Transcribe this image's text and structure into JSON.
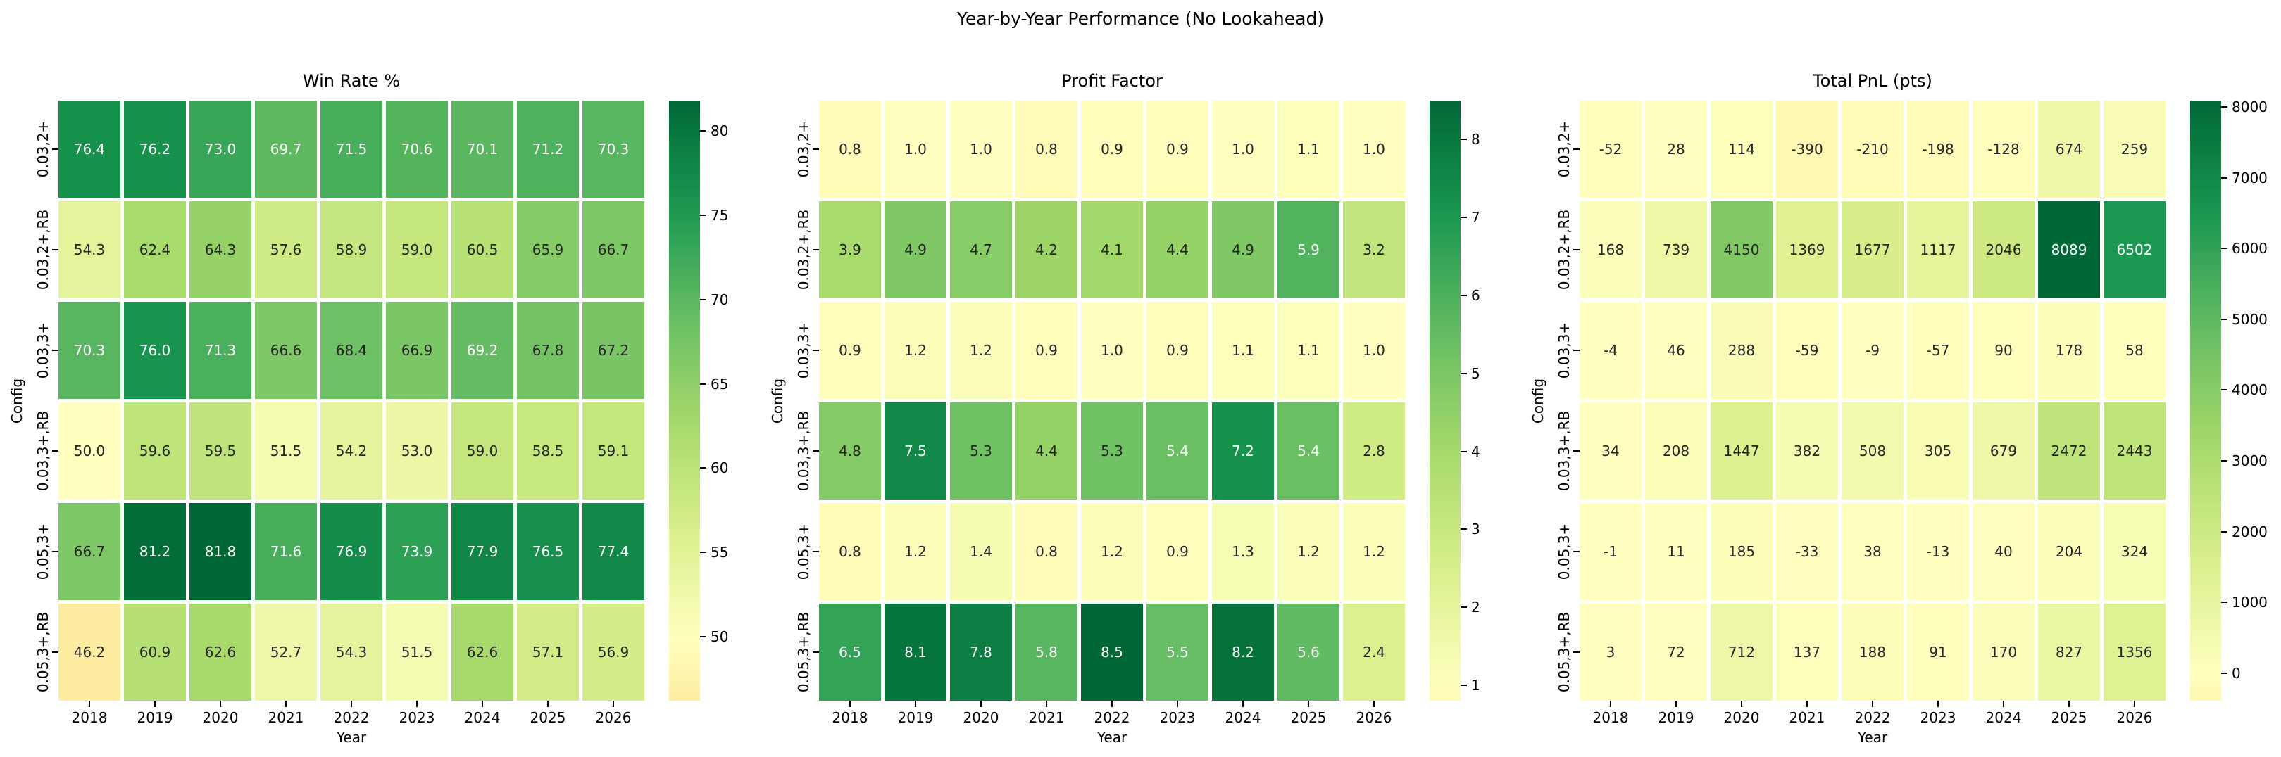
{
  "figure": {
    "suptitle": "Year-by-Year Performance (No Lookahead)",
    "background": "#ffffff"
  },
  "colormap": {
    "name": "RdYlGn",
    "stops": [
      "#a50026",
      "#d73027",
      "#f46d43",
      "#fdae61",
      "#fee08b",
      "#ffffbf",
      "#d9ef8b",
      "#a6d96a",
      "#66bd63",
      "#1a9850",
      "#006837"
    ]
  },
  "annotation_text": {
    "dark": "#262626",
    "light": "#ffffff",
    "luminance_threshold": 0.413
  },
  "chart_data": [
    {
      "type": "heatmap",
      "title": "Win Rate %",
      "xlabel": "Year",
      "ylabel": "Config",
      "x": [
        "2018",
        "2019",
        "2020",
        "2021",
        "2022",
        "2023",
        "2024",
        "2025",
        "2026"
      ],
      "y": [
        "0.03,2+",
        "0.03,2+,RB",
        "0.03,3+",
        "0.03,3+,RB",
        "0.05,3+",
        "0.05,3+,RB"
      ],
      "center": 50,
      "value_decimals": 1,
      "values": [
        [
          76.4,
          76.2,
          73.0,
          69.7,
          71.5,
          70.6,
          70.1,
          71.2,
          70.3
        ],
        [
          54.3,
          62.4,
          64.3,
          57.6,
          58.9,
          59.0,
          60.5,
          65.9,
          66.7
        ],
        [
          70.3,
          76.0,
          71.3,
          66.6,
          68.4,
          66.9,
          69.2,
          67.8,
          67.2
        ],
        [
          50.0,
          59.6,
          59.5,
          51.5,
          54.2,
          53.0,
          59.0,
          58.5,
          59.1
        ],
        [
          66.7,
          81.2,
          81.8,
          71.6,
          76.9,
          73.9,
          77.9,
          76.5,
          77.4
        ],
        [
          46.2,
          60.9,
          62.6,
          52.7,
          54.3,
          51.5,
          62.6,
          57.1,
          56.9
        ]
      ],
      "colorbar_ticks": [
        50,
        55,
        60,
        65,
        70,
        75,
        80
      ]
    },
    {
      "type": "heatmap",
      "title": "Profit Factor",
      "xlabel": "Year",
      "ylabel": "Config",
      "x": [
        "2018",
        "2019",
        "2020",
        "2021",
        "2022",
        "2023",
        "2024",
        "2025",
        "2026"
      ],
      "y": [
        "0.03,2+",
        "0.03,2+,RB",
        "0.03,3+",
        "0.03,3+,RB",
        "0.05,3+",
        "0.05,3+,RB"
      ],
      "center": 1,
      "value_decimals": 1,
      "values": [
        [
          0.8,
          1.0,
          1.0,
          0.8,
          0.9,
          0.9,
          1.0,
          1.1,
          1.0
        ],
        [
          3.9,
          4.9,
          4.7,
          4.2,
          4.1,
          4.4,
          4.9,
          5.9,
          3.2
        ],
        [
          0.9,
          1.2,
          1.2,
          0.9,
          1.0,
          0.9,
          1.1,
          1.1,
          1.0
        ],
        [
          4.8,
          7.5,
          5.3,
          4.4,
          5.3,
          5.4,
          7.2,
          5.4,
          2.8
        ],
        [
          0.8,
          1.2,
          1.4,
          0.8,
          1.2,
          0.9,
          1.3,
          1.2,
          1.2
        ],
        [
          6.5,
          8.1,
          7.8,
          5.8,
          8.5,
          5.5,
          8.2,
          5.6,
          2.4
        ]
      ],
      "colorbar_ticks": [
        1,
        2,
        3,
        4,
        5,
        6,
        7,
        8
      ]
    },
    {
      "type": "heatmap",
      "title": "Total PnL (pts)",
      "xlabel": "Year",
      "ylabel": "Config",
      "x": [
        "2018",
        "2019",
        "2020",
        "2021",
        "2022",
        "2023",
        "2024",
        "2025",
        "2026"
      ],
      "y": [
        "0.03,2+",
        "0.03,2+,RB",
        "0.03,3+",
        "0.03,3+,RB",
        "0.05,3+",
        "0.05,3+,RB"
      ],
      "center": 0,
      "value_decimals": 0,
      "values": [
        [
          -52,
          28,
          114,
          -390,
          -210,
          -198,
          -128,
          674,
          259
        ],
        [
          168,
          739,
          4150,
          1369,
          1677,
          1117,
          2046,
          8089,
          6502
        ],
        [
          -4,
          46,
          288,
          -59,
          -9,
          -57,
          90,
          178,
          58
        ],
        [
          34,
          208,
          1447,
          382,
          508,
          305,
          679,
          2472,
          2443
        ],
        [
          -1,
          11,
          185,
          -33,
          38,
          -13,
          40,
          204,
          324
        ],
        [
          3,
          72,
          712,
          137,
          188,
          91,
          170,
          827,
          1356
        ]
      ],
      "colorbar_ticks": [
        0,
        1000,
        2000,
        3000,
        4000,
        5000,
        6000,
        7000,
        8000
      ]
    }
  ]
}
